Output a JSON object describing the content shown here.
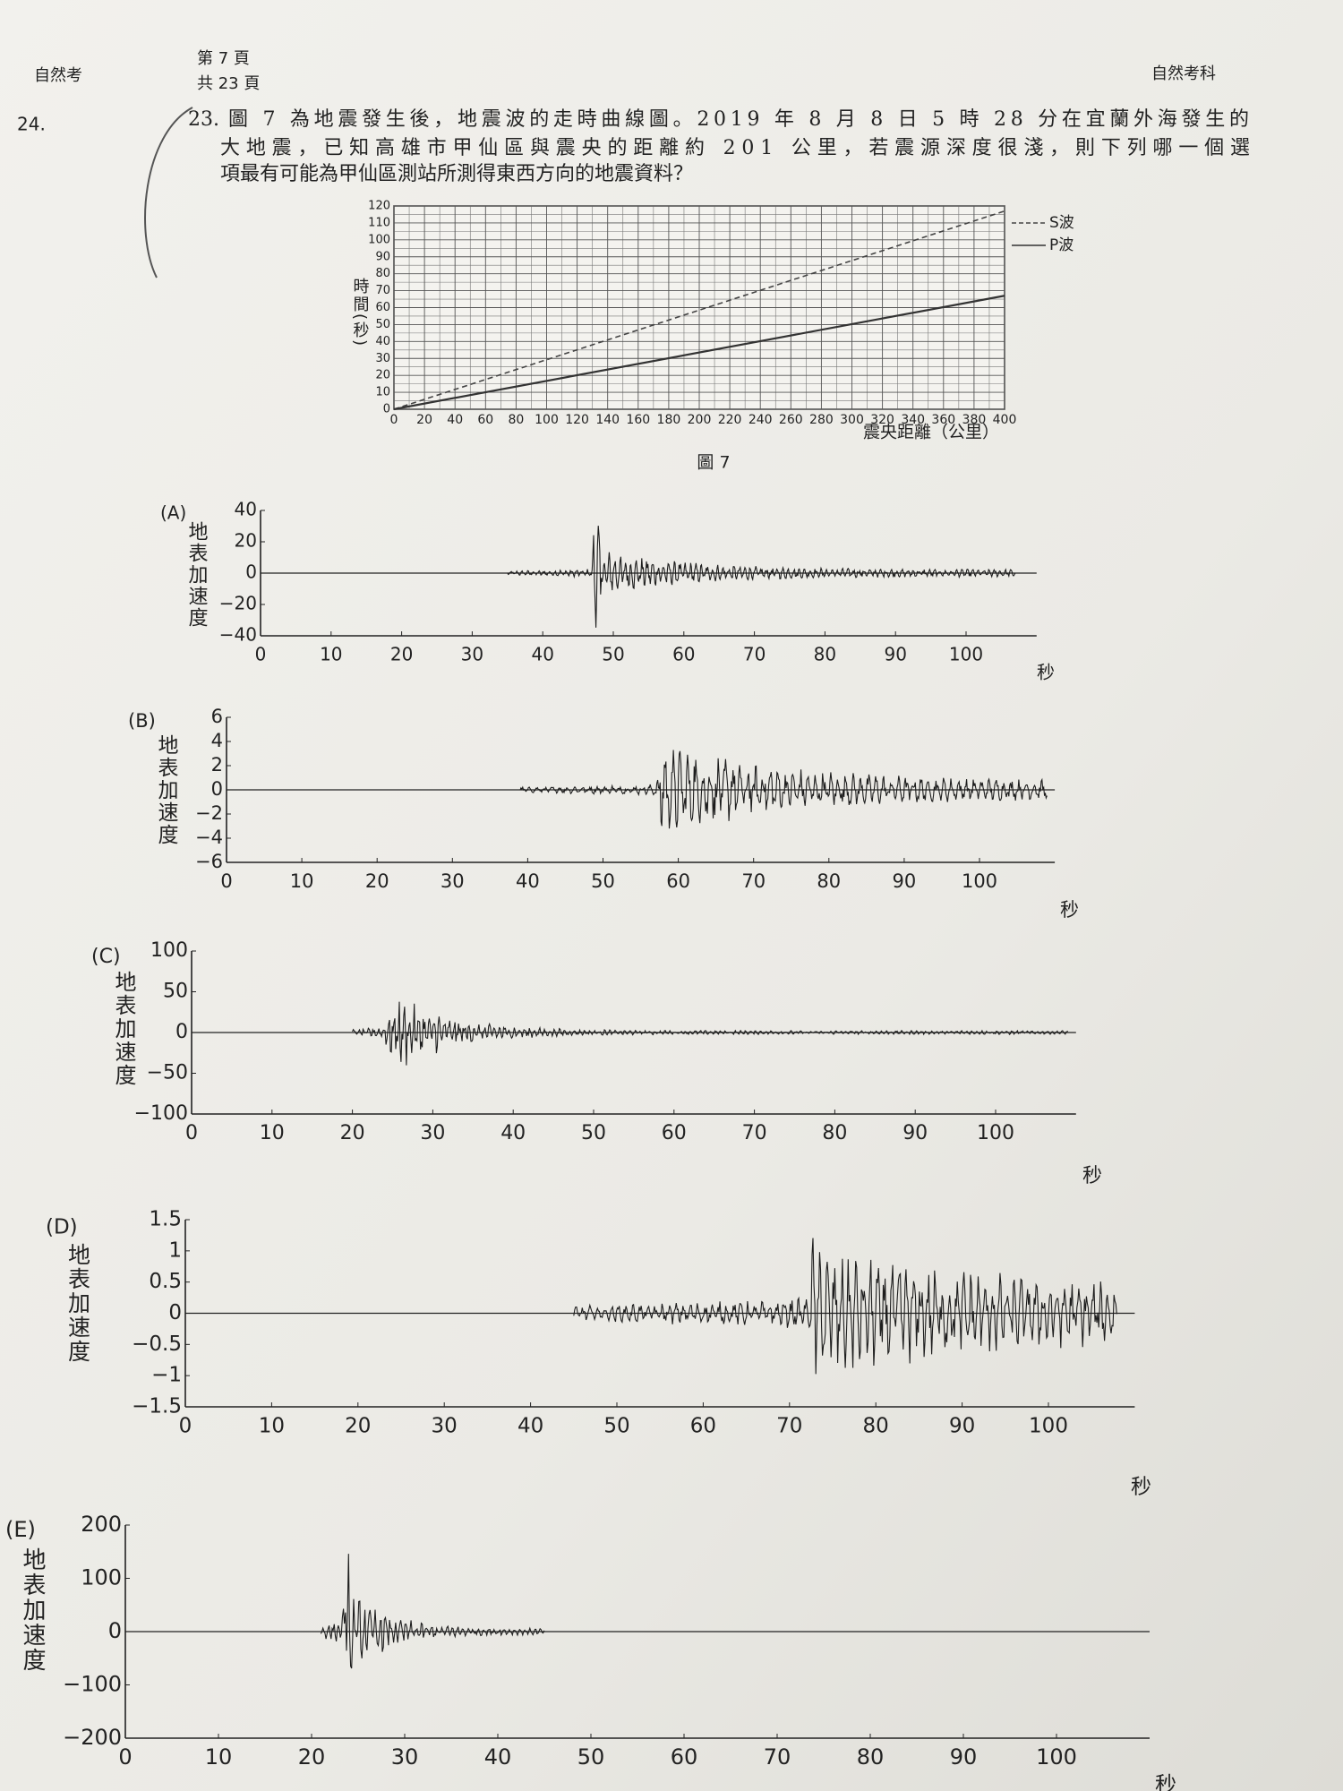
{
  "header": {
    "left": "自然考",
    "page": "第 7 頁",
    "total": "共 23 頁",
    "right": "自然考科",
    "margin_number": "24."
  },
  "question": {
    "number": "23.",
    "lines": [
      "圖 7 為地震發生後，地震波的走時曲線圖。2019 年 8 月 8 日 5 時 28 分在宜蘭外海發生的",
      "大地震，已知高雄市甲仙區與震央的距離約 201 公里，若震源深度很淺，則下列哪一個選",
      "項最有可能為甲仙區測站所測得東西方向的地震資料？"
    ]
  },
  "figure7": {
    "type": "line",
    "caption": "圖 7",
    "x_label": "震央距離（公里）",
    "y_label": "時間(秒)",
    "x": [
      0,
      400
    ],
    "series": [
      {
        "name": "S波",
        "color": "#444444",
        "dashed": true,
        "values": [
          0,
          117
        ]
      },
      {
        "name": "P波",
        "color": "#333333",
        "dashed": false,
        "values": [
          0,
          67
        ]
      }
    ],
    "xlim": [
      0,
      400
    ],
    "ylim": [
      0,
      120
    ],
    "xticks": [
      0,
      20,
      40,
      60,
      80,
      100,
      120,
      140,
      160,
      180,
      200,
      220,
      240,
      260,
      280,
      300,
      320,
      340,
      360,
      380,
      400
    ],
    "yticks": [
      0,
      10,
      20,
      30,
      40,
      50,
      60,
      70,
      80,
      90,
      100,
      110,
      120
    ],
    "grid": true,
    "legend": "upper right"
  },
  "options": [
    {
      "type": "waveform",
      "label": "(A)",
      "y_label": "地表加速度",
      "x_label": "秒",
      "xlim": [
        0,
        110
      ],
      "ylim": [
        -40,
        40
      ],
      "xticks": [
        0,
        10,
        20,
        30,
        40,
        50,
        60,
        70,
        80,
        90,
        100
      ],
      "yticks": [
        40,
        20,
        0,
        {
          "value": -20,
          "label": "−20"
        },
        {
          "value": -40,
          "label": "−40"
        }
      ]
    },
    {
      "type": "waveform",
      "label": "(B)",
      "y_label": "地表加速度",
      "x_label": "秒",
      "xlim": [
        0,
        110
      ],
      "ylim": [
        -6,
        6
      ],
      "xticks": [
        0,
        10,
        20,
        30,
        40,
        50,
        60,
        70,
        80,
        90,
        100
      ],
      "yticks": [
        6,
        4,
        2,
        0,
        {
          "value": -2,
          "label": "−2"
        },
        {
          "value": -4,
          "label": "−4"
        },
        {
          "value": -6,
          "label": "−6"
        }
      ]
    },
    {
      "type": "waveform",
      "label": "(C)",
      "y_label": "地表加速度",
      "x_label": "秒",
      "xlim": [
        0,
        110
      ],
      "ylim": [
        -100,
        100
      ],
      "xticks": [
        0,
        10,
        20,
        30,
        40,
        50,
        60,
        70,
        80,
        90,
        100
      ],
      "yticks": [
        100,
        50,
        0,
        {
          "value": -50,
          "label": "−50"
        },
        {
          "value": -100,
          "label": "−100"
        }
      ]
    },
    {
      "type": "waveform",
      "label": "(D)",
      "y_label": "地表加速度",
      "x_label": "秒",
      "xlim": [
        0,
        110
      ],
      "ylim": [
        -1.5,
        1.5
      ],
      "xticks": [
        0,
        10,
        20,
        30,
        40,
        50,
        60,
        70,
        80,
        90,
        100
      ],
      "yticks": [
        1.5,
        1,
        0.5,
        0,
        {
          "value": -0.5,
          "label": "−0.5"
        },
        {
          "value": -1,
          "label": "−1"
        },
        {
          "value": -1.5,
          "label": "−1.5"
        }
      ]
    },
    {
      "type": "waveform",
      "label": "(E)",
      "y_label": "地表加速度",
      "x_label": "秒",
      "xlim": [
        0,
        110
      ],
      "ylim": [
        -200,
        200
      ],
      "xticks": [
        0,
        10,
        20,
        30,
        40,
        50,
        60,
        70,
        80,
        90,
        100
      ],
      "yticks": [
        200,
        100,
        0,
        {
          "value": -100,
          "label": "−100"
        },
        {
          "value": -200,
          "label": "−200"
        }
      ]
    }
  ]
}
